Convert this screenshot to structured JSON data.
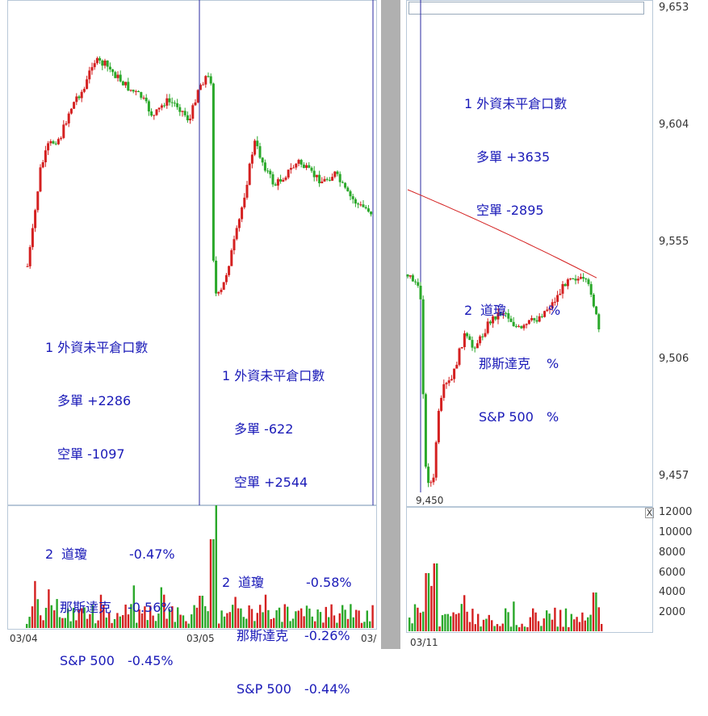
{
  "left_chart": {
    "dates": [
      "03/04",
      "03/05",
      "03/"
    ],
    "day1": {
      "title": "1 外資未平倉口數",
      "long_label": "多單 +2286",
      "short_label": "空單 -1097",
      "index_title": "2  道瓊",
      "rows": [
        {
          "name": "道瓊",
          "value": "-0.47%"
        },
        {
          "name": "那斯達克",
          "value": "-0.56%"
        },
        {
          "name": "S&P 500",
          "value": "-0.45%"
        }
      ]
    },
    "day2": {
      "title": "1 外資未平倉口數",
      "long_label": "多單 -622",
      "short_label": "空單 +2544",
      "rows": [
        {
          "name": "道瓊",
          "value": "-0.58%"
        },
        {
          "name": "那斯達克",
          "value": "-0.26%"
        },
        {
          "name": "S&P 500",
          "value": "-0.44%"
        }
      ]
    }
  },
  "right_chart": {
    "date": "03/11",
    "low_label": "9,450",
    "price_ticks": [
      "9,653",
      "9,604",
      "9,555",
      "9,506",
      "9,457"
    ],
    "volume_ticks": [
      "12000",
      "10000",
      "8000",
      "6000",
      "4000",
      "2000"
    ],
    "close_button": "X",
    "annotation": {
      "title": "1 外資未平倉口數",
      "long_label": "多單 +3635",
      "short_label": "空單 -2895",
      "rows": [
        {
          "name": "道瓊",
          "value": "%"
        },
        {
          "name": "那斯達克",
          "value": "%"
        },
        {
          "name": "S&P 500",
          "value": "%"
        }
      ]
    }
  },
  "colors": {
    "up": "#d42020",
    "down": "#2aa82a",
    "separator": "#2a2aa0",
    "ma_line": "#d42020",
    "text": "#1a1ab8"
  },
  "chart_data": [
    {
      "type": "candlestick",
      "title": "",
      "x": [
        "03/04",
        "03/05"
      ],
      "price_range": "intraday, day1 rises then falls; day2 gaps down then recovers",
      "volume_max": 12000
    },
    {
      "type": "candlestick",
      "title": "",
      "x": [
        "03/11"
      ],
      "yticks": [
        9653,
        9604,
        9555,
        9506,
        9457
      ],
      "ylim": [
        9440,
        9660
      ],
      "low": 9450,
      "volume_ticks": [
        12000,
        10000,
        8000,
        6000,
        4000,
        2000
      ],
      "grid": false
    }
  ]
}
